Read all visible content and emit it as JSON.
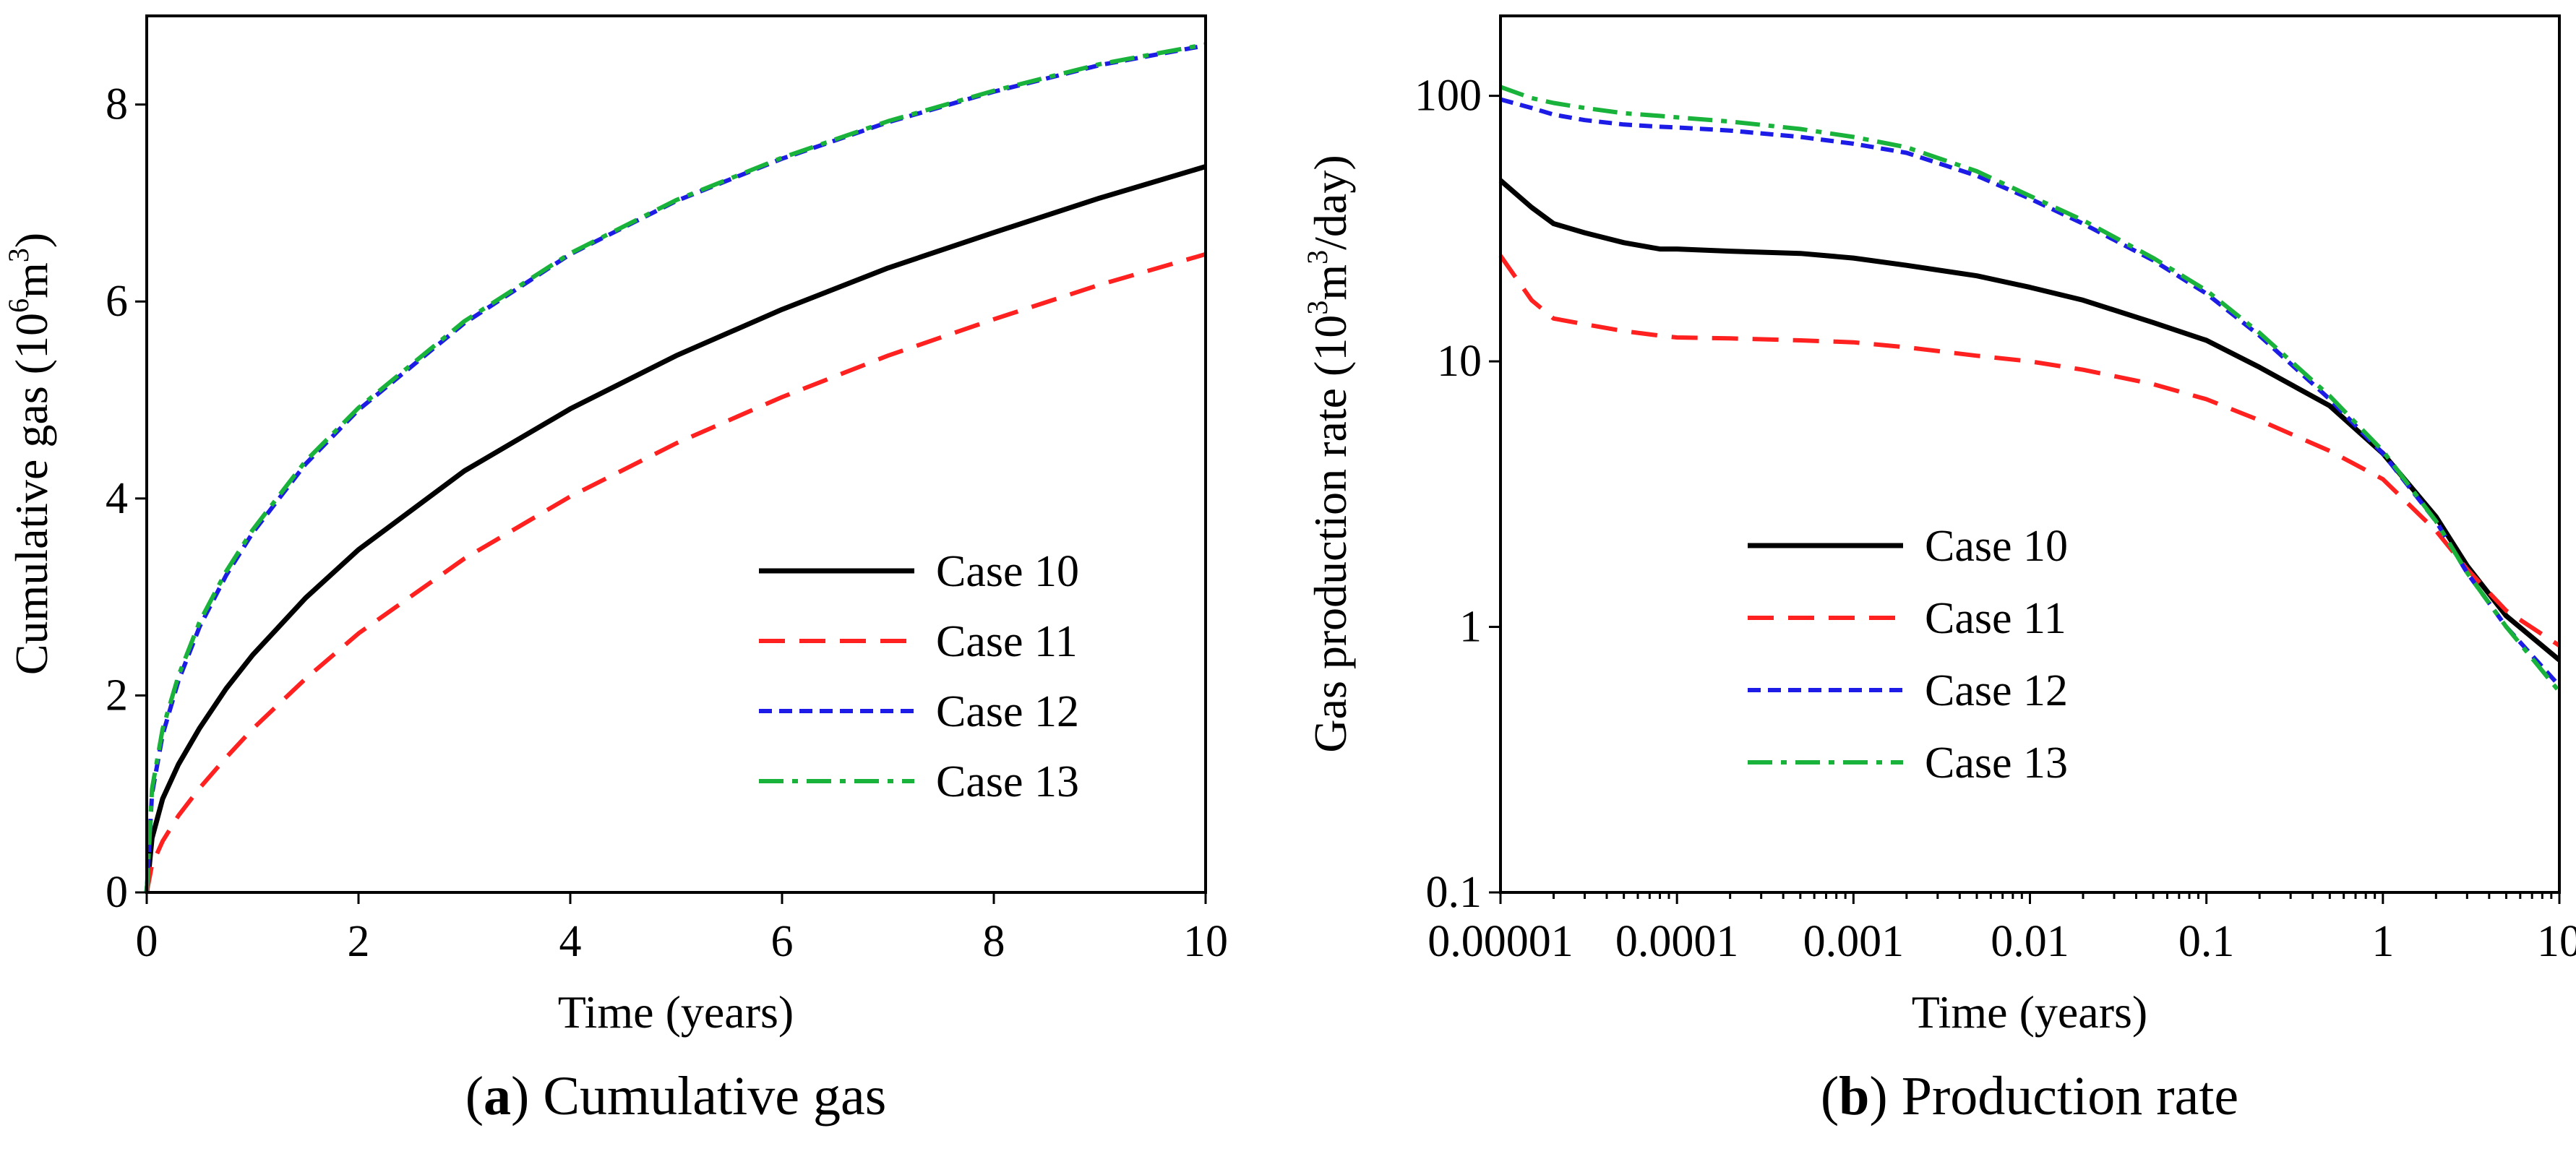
{
  "colors": {
    "case10": "#000000",
    "case11": "#ff2020",
    "case12": "#1c1ce6",
    "case13": "#19b33c"
  },
  "chart_data": [
    {
      "type": "line",
      "caption_letter": "a",
      "caption_text": " Cumulative gas",
      "xlabel": "Time (years)",
      "ylabel_parts": [
        "Cumulative gas (10",
        "6",
        "m",
        "3",
        ")"
      ],
      "xlim": [
        0,
        10
      ],
      "ylim": [
        0,
        8.9
      ],
      "xticks": [
        0,
        2,
        4,
        6,
        8,
        10
      ],
      "yticks": [
        0,
        2,
        4,
        6,
        8
      ],
      "xscale": "linear",
      "yscale": "linear",
      "legend_position": "bottom-right",
      "series": [
        {
          "name": "Case 10",
          "x": [
            0,
            0.05,
            0.15,
            0.3,
            0.5,
            0.75,
            1,
            1.5,
            2,
            3,
            4,
            5,
            6,
            7,
            8,
            9,
            10
          ],
          "y": [
            0,
            0.55,
            0.95,
            1.3,
            1.67,
            2.07,
            2.41,
            2.99,
            3.48,
            4.28,
            4.91,
            5.45,
            5.92,
            6.34,
            6.7,
            7.05,
            7.37
          ]
        },
        {
          "name": "Case 11",
          "x": [
            0,
            0.05,
            0.15,
            0.3,
            0.5,
            0.75,
            1,
            1.5,
            2,
            3,
            4,
            5,
            6,
            7,
            8,
            9,
            10
          ],
          "y": [
            0,
            0.28,
            0.52,
            0.78,
            1.06,
            1.37,
            1.66,
            2.17,
            2.63,
            3.39,
            4.02,
            4.56,
            5.03,
            5.45,
            5.82,
            6.17,
            6.48
          ]
        },
        {
          "name": "Case 12",
          "x": [
            0,
            0.05,
            0.15,
            0.3,
            0.5,
            0.75,
            1,
            1.5,
            2,
            3,
            4,
            5,
            6,
            7,
            8,
            9,
            10
          ],
          "y": [
            0,
            1.0,
            1.6,
            2.15,
            2.7,
            3.22,
            3.65,
            4.35,
            4.9,
            5.78,
            6.48,
            7.02,
            7.45,
            7.82,
            8.13,
            8.4,
            8.6
          ]
        },
        {
          "name": "Case 13",
          "x": [
            0,
            0.05,
            0.15,
            0.3,
            0.5,
            0.75,
            1,
            1.5,
            2,
            3,
            4,
            5,
            6,
            7,
            8,
            9,
            10
          ],
          "y": [
            0,
            1.05,
            1.66,
            2.2,
            2.75,
            3.26,
            3.68,
            4.38,
            4.92,
            5.8,
            6.49,
            7.03,
            7.46,
            7.83,
            8.14,
            8.41,
            8.61
          ]
        }
      ]
    },
    {
      "type": "line",
      "caption_letter": "b",
      "caption_text": " Production rate",
      "xlabel": "Time (years)",
      "ylabel_parts": [
        "Gas production rate (10",
        "3",
        "m",
        "3",
        "/day)"
      ],
      "xlim": [
        1e-05,
        10
      ],
      "ylim": [
        0.1,
        200
      ],
      "xticks": [
        1e-05,
        0.0001,
        0.001,
        0.01,
        0.1,
        1,
        10
      ],
      "xtick_labels": [
        "0.00001",
        "0.0001",
        "0.001",
        "0.01",
        "0.1",
        "1",
        "10"
      ],
      "yticks": [
        0.1,
        1,
        10,
        100
      ],
      "ytick_labels": [
        "0.1",
        "1",
        "10",
        "100"
      ],
      "xscale": "log",
      "yscale": "log",
      "legend_position": "center-left",
      "series": [
        {
          "name": "Case 10",
          "x": [
            1e-05,
            1.5e-05,
            2e-05,
            3e-05,
            5e-05,
            8e-05,
            0.0001,
            0.0002,
            0.0005,
            0.001,
            0.002,
            0.005,
            0.01,
            0.02,
            0.05,
            0.1,
            0.2,
            0.5,
            1,
            2,
            3,
            5,
            10
          ],
          "y": [
            48,
            38,
            33,
            30.5,
            28,
            26.5,
            26.5,
            26,
            25.5,
            24.5,
            23,
            21,
            19,
            17,
            14,
            12,
            9.5,
            6.8,
            4.5,
            2.6,
            1.7,
            1.1,
            0.75
          ]
        },
        {
          "name": "Case 11",
          "x": [
            1e-05,
            1.5e-05,
            2e-05,
            3e-05,
            5e-05,
            8e-05,
            0.0001,
            0.0002,
            0.0005,
            0.001,
            0.002,
            0.005,
            0.01,
            0.02,
            0.05,
            0.1,
            0.2,
            0.5,
            1,
            2,
            3,
            5,
            10
          ],
          "y": [
            25,
            17,
            14.5,
            13.8,
            13,
            12.5,
            12.3,
            12.2,
            12,
            11.8,
            11.3,
            10.5,
            10,
            9.3,
            8.2,
            7.2,
            6,
            4.6,
            3.6,
            2.3,
            1.65,
            1.15,
            0.85
          ]
        },
        {
          "name": "Case 12",
          "x": [
            1e-05,
            1.5e-05,
            2e-05,
            3e-05,
            5e-05,
            8e-05,
            0.0001,
            0.0002,
            0.0005,
            0.001,
            0.002,
            0.005,
            0.01,
            0.02,
            0.05,
            0.1,
            0.2,
            0.5,
            1,
            2,
            3,
            5,
            10
          ],
          "y": [
            97,
            90,
            85,
            81,
            78,
            76.5,
            76,
            74,
            70,
            66,
            61,
            50,
            41,
            33,
            24,
            18,
            12.5,
            7.2,
            4.5,
            2.5,
            1.6,
            1.0,
            0.6
          ]
        },
        {
          "name": "Case 13",
          "x": [
            1e-05,
            1.5e-05,
            2e-05,
            3e-05,
            5e-05,
            8e-05,
            0.0001,
            0.0002,
            0.0005,
            0.001,
            0.002,
            0.005,
            0.01,
            0.02,
            0.05,
            0.1,
            0.2,
            0.5,
            1,
            2,
            3,
            5,
            10
          ],
          "y": [
            108,
            98,
            94,
            90,
            86,
            84,
            83,
            80,
            75,
            70,
            64,
            52,
            42,
            34,
            24.5,
            18.5,
            12.8,
            7.4,
            4.6,
            2.5,
            1.6,
            1.0,
            0.57
          ]
        }
      ]
    }
  ]
}
